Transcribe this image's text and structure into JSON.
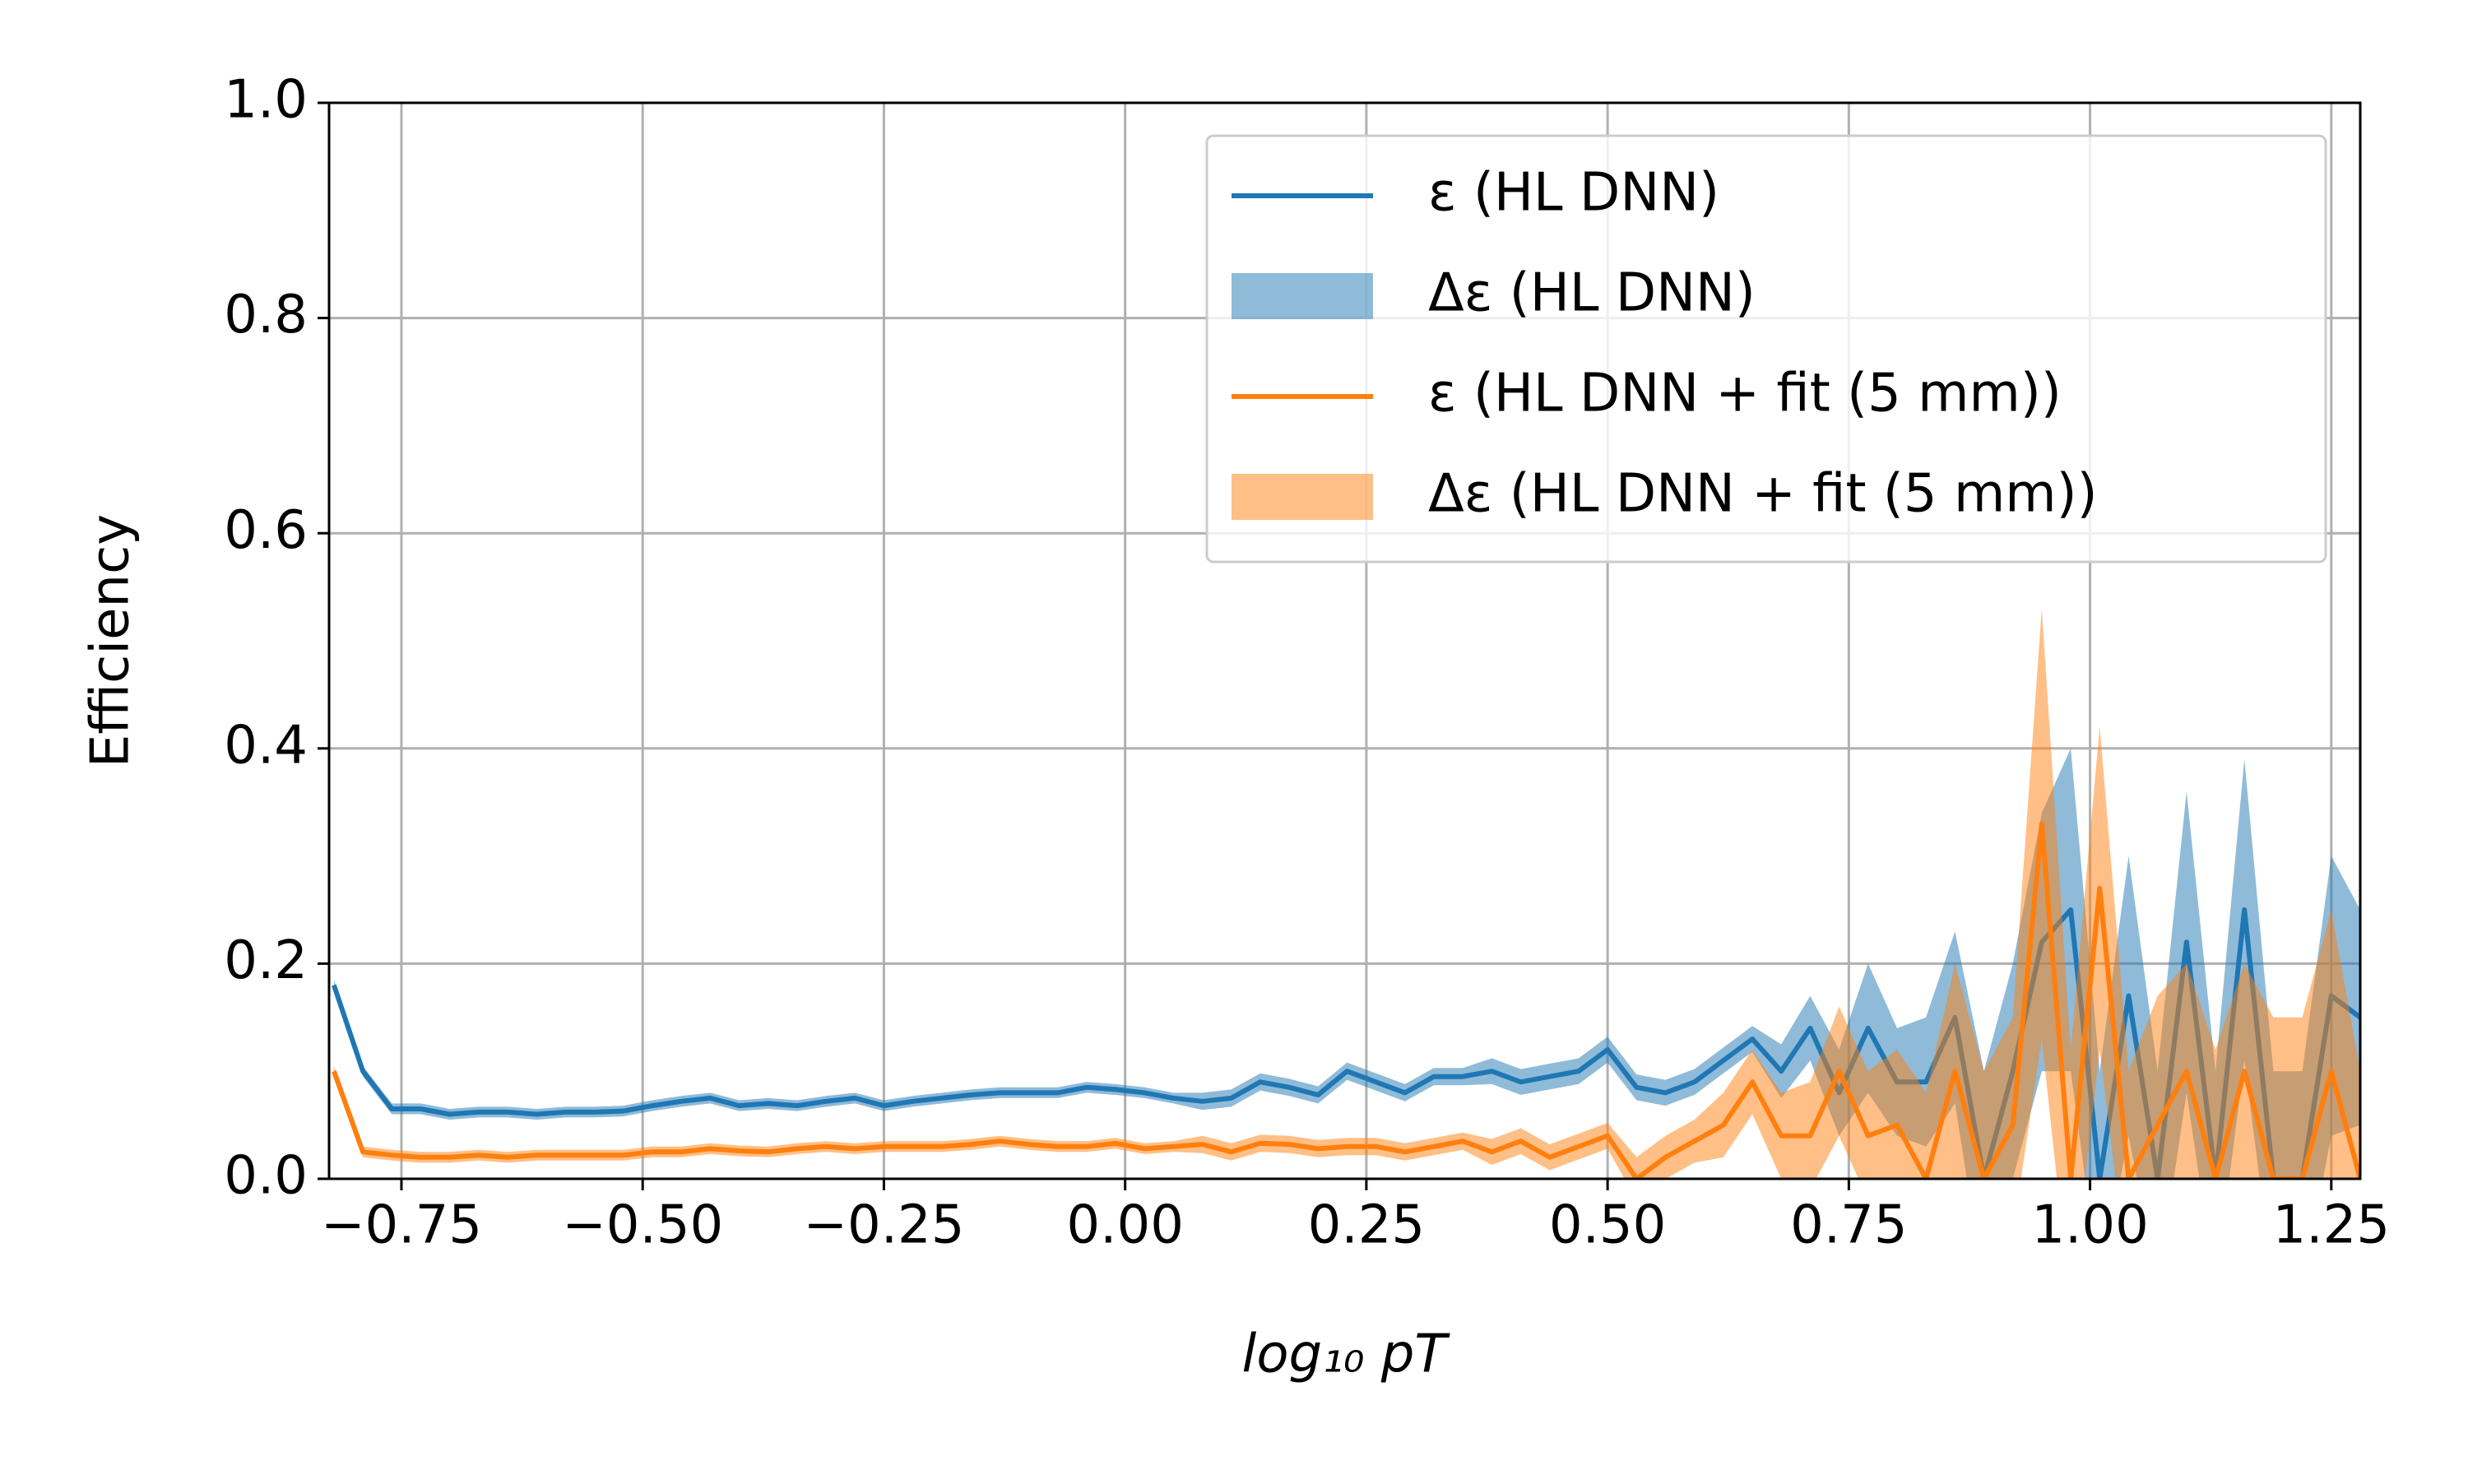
{
  "chart_data": {
    "type": "line",
    "xlabel": "log₁₀ pT",
    "ylabel": "Efficiency",
    "xlim": [
      -0.825,
      1.28
    ],
    "ylim": [
      0,
      1
    ],
    "xticks": [
      {
        "value": -0.75,
        "label": "−0.75"
      },
      {
        "value": -0.5,
        "label": "−0.50"
      },
      {
        "value": -0.25,
        "label": "−0.25"
      },
      {
        "value": 0,
        "label": "0.00"
      },
      {
        "value": 0.25,
        "label": "0.25"
      },
      {
        "value": 0.5,
        "label": "0.50"
      },
      {
        "value": 0.75,
        "label": "0.75"
      },
      {
        "value": 1,
        "label": "1.00"
      },
      {
        "value": 1.25,
        "label": "1.25"
      }
    ],
    "yticks": [
      {
        "value": 0,
        "label": "0.0"
      },
      {
        "value": 0.2,
        "label": "0.2"
      },
      {
        "value": 0.4,
        "label": "0.4"
      },
      {
        "value": 0.6,
        "label": "0.6"
      },
      {
        "value": 0.8,
        "label": "0.8"
      },
      {
        "value": 1,
        "label": "1.0"
      }
    ],
    "grid": true,
    "legend": "upper right",
    "x": [
      -0.82,
      -0.79,
      -0.76,
      -0.73,
      -0.7,
      -0.67,
      -0.64,
      -0.61,
      -0.58,
      -0.55,
      -0.52,
      -0.49,
      -0.46,
      -0.43,
      -0.4,
      -0.37,
      -0.34,
      -0.31,
      -0.28,
      -0.25,
      -0.22,
      -0.19,
      -0.16,
      -0.13,
      -0.1,
      -0.07,
      -0.04,
      -0.01,
      0.02,
      0.05,
      0.08,
      0.11,
      0.14,
      0.17,
      0.2,
      0.23,
      0.26,
      0.29,
      0.32,
      0.35,
      0.38,
      0.41,
      0.44,
      0.47,
      0.5,
      0.53,
      0.56,
      0.59,
      0.62,
      0.65,
      0.68,
      0.71,
      0.74,
      0.77,
      0.8,
      0.83,
      0.86,
      0.89,
      0.92,
      0.95,
      0.98,
      1.01,
      1.04,
      1.07,
      1.1,
      1.13,
      1.16,
      1.19,
      1.22,
      1.25,
      1.28
    ],
    "series": [
      {
        "name": "ε (HL DNN)",
        "color": "#1f77b4",
        "values": [
          0.18,
          0.1,
          0.065,
          0.065,
          0.06,
          0.062,
          0.062,
          0.06,
          0.062,
          0.062,
          0.063,
          0.068,
          0.072,
          0.075,
          0.068,
          0.07,
          0.068,
          0.072,
          0.075,
          0.068,
          0.072,
          0.075,
          0.078,
          0.08,
          0.08,
          0.08,
          0.085,
          0.083,
          0.08,
          0.075,
          0.072,
          0.075,
          0.09,
          0.085,
          0.078,
          0.1,
          0.09,
          0.08,
          0.095,
          0.095,
          0.1,
          0.09,
          0.095,
          0.1,
          0.12,
          0.085,
          0.08,
          0.09,
          0.11,
          0.13,
          0.1,
          0.14,
          0.08,
          0.14,
          0.09,
          0.09,
          0.15,
          0.0,
          0.1,
          0.22,
          0.25,
          0.0,
          0.17,
          0.0,
          0.22,
          0.0,
          0.25,
          0.0,
          0.0,
          0.17,
          0.15
        ],
        "band": {
          "name": "Δε (HL DNN)",
          "color": "#1f77b4",
          "alpha": 0.5,
          "errors": [
            0.005,
            0.005,
            0.005,
            0.005,
            0.005,
            0.005,
            0.005,
            0.005,
            0.005,
            0.005,
            0.005,
            0.005,
            0.005,
            0.005,
            0.005,
            0.005,
            0.005,
            0.005,
            0.005,
            0.005,
            0.005,
            0.005,
            0.005,
            0.005,
            0.005,
            0.005,
            0.005,
            0.005,
            0.005,
            0.005,
            0.008,
            0.008,
            0.008,
            0.008,
            0.008,
            0.008,
            0.008,
            0.008,
            0.008,
            0.008,
            0.012,
            0.012,
            0.012,
            0.012,
            0.012,
            0.012,
            0.012,
            0.012,
            0.012,
            0.012,
            0.025,
            0.03,
            0.04,
            0.06,
            0.05,
            0.06,
            0.08,
            0.1,
            0.1,
            0.12,
            0.15,
            0.1,
            0.13,
            0.1,
            0.14,
            0.1,
            0.14,
            0.1,
            0.1,
            0.13,
            0.1
          ]
        }
      },
      {
        "name": "ε (HL DNN + fit (5 mm))",
        "color": "#ff7f0e",
        "values": [
          0.1,
          0.025,
          0.022,
          0.02,
          0.02,
          0.022,
          0.02,
          0.022,
          0.022,
          0.022,
          0.022,
          0.025,
          0.025,
          0.028,
          0.026,
          0.025,
          0.028,
          0.03,
          0.028,
          0.03,
          0.03,
          0.03,
          0.032,
          0.035,
          0.032,
          0.03,
          0.03,
          0.033,
          0.028,
          0.03,
          0.032,
          0.025,
          0.033,
          0.032,
          0.028,
          0.03,
          0.03,
          0.025,
          0.03,
          0.035,
          0.025,
          0.035,
          0.02,
          0.03,
          0.04,
          0.0,
          0.02,
          0.035,
          0.05,
          0.09,
          0.04,
          0.04,
          0.1,
          0.04,
          0.05,
          0.0,
          0.1,
          0.0,
          0.05,
          0.33,
          0.0,
          0.27,
          0.0,
          0.05,
          0.1,
          0.0,
          0.1,
          0.0,
          0.0,
          0.1,
          0.0
        ],
        "band": {
          "name": "Δε (HL DNN + fit (5 mm))",
          "color": "#ff7f0e",
          "alpha": 0.5,
          "errors": [
            0.005,
            0.005,
            0.005,
            0.005,
            0.005,
            0.005,
            0.005,
            0.005,
            0.005,
            0.005,
            0.005,
            0.005,
            0.005,
            0.005,
            0.005,
            0.005,
            0.005,
            0.005,
            0.005,
            0.005,
            0.005,
            0.005,
            0.005,
            0.005,
            0.005,
            0.005,
            0.005,
            0.005,
            0.005,
            0.005,
            0.008,
            0.008,
            0.008,
            0.008,
            0.008,
            0.008,
            0.008,
            0.008,
            0.008,
            0.008,
            0.012,
            0.012,
            0.012,
            0.012,
            0.012,
            0.02,
            0.02,
            0.02,
            0.03,
            0.03,
            0.04,
            0.05,
            0.06,
            0.06,
            0.07,
            0.08,
            0.1,
            0.1,
            0.1,
            0.2,
            0.12,
            0.15,
            0.1,
            0.12,
            0.1,
            0.12,
            0.1,
            0.15,
            0.15,
            0.15,
            0.1
          ]
        }
      }
    ]
  }
}
